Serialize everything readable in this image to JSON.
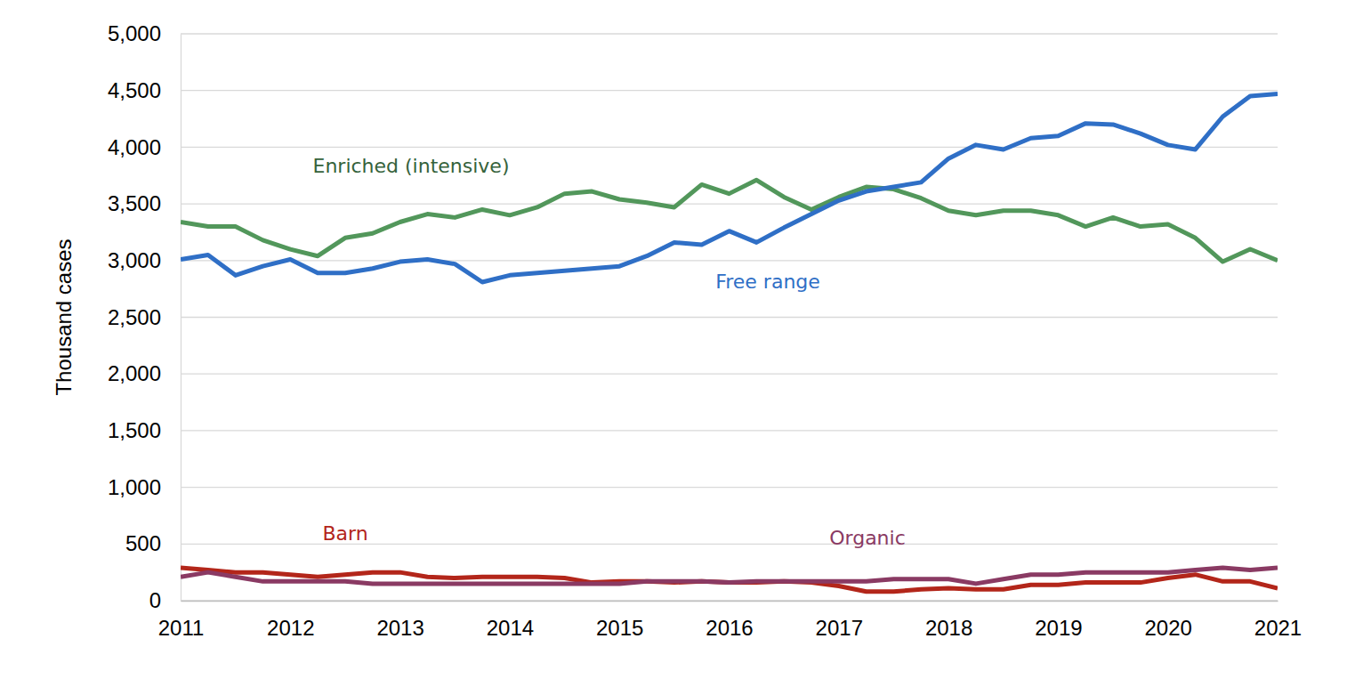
{
  "chart_data": {
    "type": "line",
    "y_label": "Thousand cases",
    "x": [
      2011,
      2011.25,
      2011.5,
      2011.75,
      2012,
      2012.25,
      2012.5,
      2012.75,
      2013,
      2013.25,
      2013.5,
      2013.75,
      2014,
      2014.25,
      2014.5,
      2014.75,
      2015,
      2015.25,
      2015.5,
      2015.75,
      2016,
      2016.25,
      2016.5,
      2016.75,
      2017,
      2017.25,
      2017.5,
      2017.75,
      2018,
      2018.25,
      2018.5,
      2018.75,
      2019,
      2019.25,
      2019.5,
      2019.75,
      2020,
      2020.25,
      2020.5,
      2020.75,
      2021
    ],
    "series": [
      {
        "name": "Enriched (intensive)",
        "color": "#52975b",
        "values": [
          3340,
          3300,
          3300,
          3180,
          3100,
          3040,
          3200,
          3240,
          3340,
          3410,
          3380,
          3450,
          3400,
          3470,
          3590,
          3610,
          3540,
          3510,
          3470,
          3670,
          3590,
          3710,
          3560,
          3450,
          3560,
          3650,
          3630,
          3550,
          3440,
          3400,
          3440,
          3440,
          3400,
          3300,
          3380,
          3300,
          3320,
          3200,
          2990,
          3100,
          3000
        ]
      },
      {
        "name": "Free range",
        "color": "#2f6fc6",
        "values": [
          3010,
          3050,
          2870,
          2950,
          3010,
          2890,
          2890,
          2930,
          2990,
          3010,
          2970,
          2810,
          2870,
          2890,
          2910,
          2930,
          2950,
          3040,
          3160,
          3140,
          3260,
          3160,
          3290,
          3410,
          3530,
          3610,
          3650,
          3690,
          3900,
          4020,
          3980,
          4080,
          4100,
          4210,
          4200,
          4120,
          4020,
          3980,
          4270,
          4450,
          4470
        ]
      },
      {
        "name": "Barn",
        "color": "#b3261a",
        "values": [
          290,
          270,
          250,
          250,
          230,
          210,
          230,
          250,
          250,
          210,
          200,
          210,
          210,
          210,
          200,
          160,
          170,
          170,
          160,
          170,
          160,
          160,
          170,
          160,
          130,
          80,
          80,
          100,
          110,
          100,
          100,
          140,
          140,
          160,
          160,
          160,
          200,
          230,
          170,
          170,
          110
        ]
      },
      {
        "name": "Organic",
        "color": "#8a3a63",
        "values": [
          210,
          250,
          210,
          170,
          170,
          170,
          170,
          150,
          150,
          150,
          150,
          150,
          150,
          150,
          150,
          150,
          150,
          170,
          170,
          170,
          160,
          170,
          170,
          170,
          170,
          170,
          190,
          190,
          190,
          150,
          190,
          230,
          230,
          250,
          250,
          250,
          250,
          270,
          290,
          270,
          290
        ]
      }
    ],
    "xlim": [
      2011,
      2021
    ],
    "xticks": [
      2011,
      2012,
      2013,
      2014,
      2015,
      2016,
      2017,
      2018,
      2019,
      2020,
      2021
    ],
    "ylim": [
      0,
      5000
    ],
    "yticks": [
      0,
      500,
      {
        "value": 1000,
        "label": "1,000"
      },
      {
        "value": 1500,
        "label": "1,500"
      },
      {
        "value": 2000,
        "label": "2,000"
      },
      {
        "value": 2500,
        "label": "2,500"
      },
      {
        "value": 3000,
        "label": "3,000"
      },
      {
        "value": 3500,
        "label": "3,500"
      },
      {
        "value": 4000,
        "label": "4,000"
      },
      {
        "value": 4500,
        "label": "4,500"
      },
      {
        "value": 5000,
        "label": "5,000"
      }
    ],
    "grid": true
  }
}
